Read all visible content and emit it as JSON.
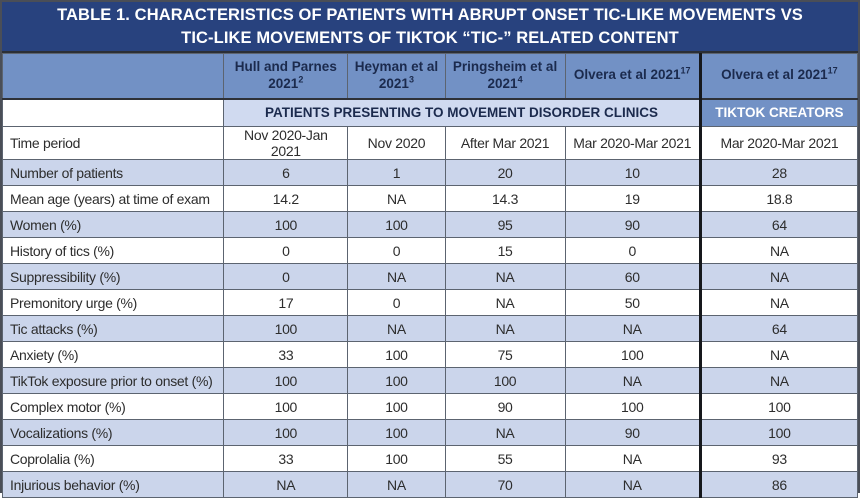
{
  "title": {
    "line1": "TABLE 1. CHARACTERISTICS OF PATIENTS WITH ABRUPT ONSET TIC-LIKE MOVEMENTS VS",
    "line2": "TIC-LIKE MOVEMENTS OF TIKTOK “TIC-” RELATED CONTENT"
  },
  "columns": [
    {
      "label": "Hull and Parnes 2021",
      "sup": "2"
    },
    {
      "label": "Heyman et al 2021",
      "sup": "3"
    },
    {
      "label": "Pringsheim et al 2021",
      "sup": "4"
    },
    {
      "label": "Olvera et al 2021",
      "sup": "17"
    },
    {
      "label": "Olvera et al 2021",
      "sup": "17"
    }
  ],
  "group_headers": {
    "clinics": "PATIENTS PRESENTING TO MOVEMENT DISORDER CLINICS",
    "tiktok": "TIKTOK CREATORS"
  },
  "rows": [
    {
      "label": "Time period",
      "values": [
        "Nov 2020-Jan 2021",
        "Nov 2020",
        "After Mar 2021",
        "Mar 2020-Mar 2021",
        "Mar 2020-Mar 2021"
      ]
    },
    {
      "label": "Number of patients",
      "values": [
        "6",
        "1",
        "20",
        "10",
        "28"
      ]
    },
    {
      "label": "Mean age (years) at time of exam",
      "values": [
        "14.2",
        "NA",
        "14.3",
        "19",
        "18.8"
      ]
    },
    {
      "label": "Women (%)",
      "values": [
        "100",
        "100",
        "95",
        "90",
        "64"
      ]
    },
    {
      "label": "History of tics (%)",
      "values": [
        "0",
        "0",
        "15",
        "0",
        "NA"
      ]
    },
    {
      "label": "Suppressibility (%)",
      "values": [
        "0",
        "NA",
        "NA",
        "60",
        "NA"
      ]
    },
    {
      "label": "Premonitory urge (%)",
      "values": [
        "17",
        "0",
        "NA",
        "50",
        "NA"
      ]
    },
    {
      "label": "Tic attacks (%)",
      "values": [
        "100",
        "NA",
        "NA",
        "NA",
        "64"
      ]
    },
    {
      "label": "Anxiety (%)",
      "values": [
        "33",
        "100",
        "75",
        "100",
        "NA"
      ]
    },
    {
      "label": "TikTok exposure prior to onset (%)",
      "values": [
        "100",
        "100",
        "100",
        "NA",
        "NA"
      ]
    },
    {
      "label": "Complex motor (%)",
      "values": [
        "100",
        "100",
        "90",
        "100",
        "100"
      ]
    },
    {
      "label": "Vocalizations (%)",
      "values": [
        "100",
        "100",
        "NA",
        "90",
        "100"
      ]
    },
    {
      "label": "Coprolalia (%)",
      "values": [
        "33",
        "100",
        "55",
        "NA",
        "93"
      ]
    },
    {
      "label": "Injurious behavior (%)",
      "values": [
        "NA",
        "NA",
        "70",
        "NA",
        "86"
      ]
    }
  ],
  "colors": {
    "navy": "#28427E",
    "headerBlue": "#7291C5",
    "subheadBlue": "#D0DAF0",
    "lightBlue": "#CBD5EB",
    "headerText": "#1B2A4D",
    "bodyText": "#2D2D2D"
  }
}
